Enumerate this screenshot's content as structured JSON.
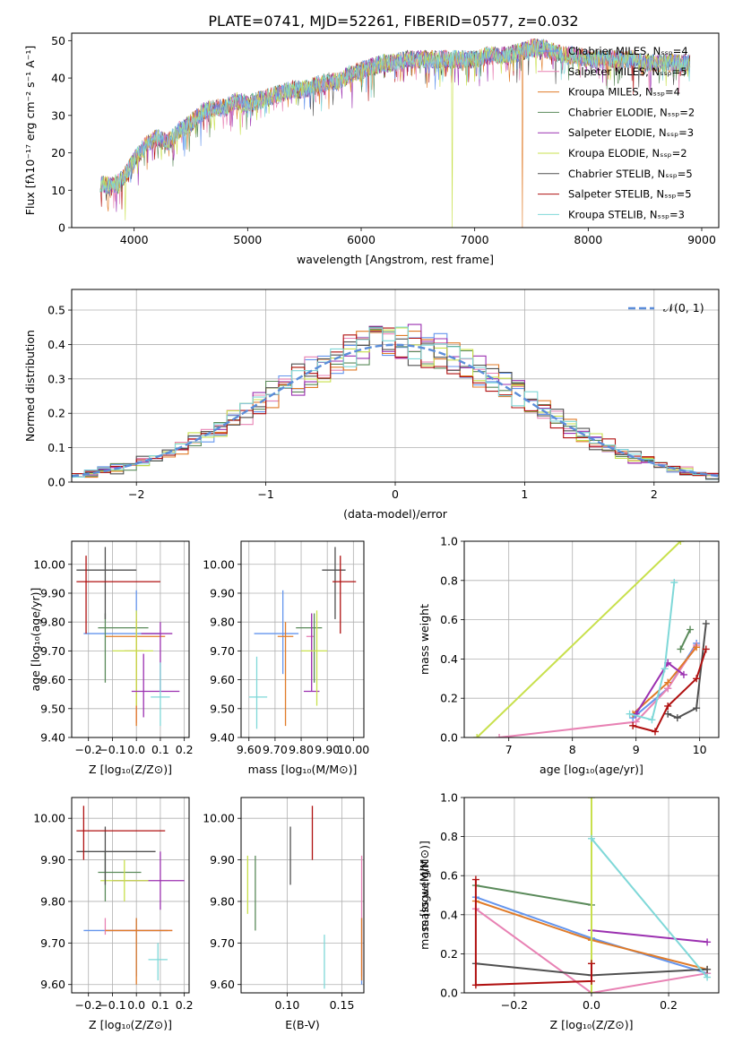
{
  "title": "PLATE=0741, MJD=52261, FIBERID=0577, z=0.032",
  "colors": [
    "#6495ed",
    "#e882b4",
    "#e07b28",
    "#5a8a5a",
    "#9b30b0",
    "#c8e04c",
    "#505050",
    "#b01010",
    "#7fd8d8"
  ],
  "chart_data": [
    {
      "type": "line",
      "name": "spectrum",
      "xlabel": "wavelength [Angstrom, rest frame]",
      "ylabel": "Flux [fλ10⁻¹⁷ erg cm⁻² s⁻¹ A⁻¹]",
      "xlim": [
        3450,
        9150
      ],
      "ylim": [
        0,
        52
      ],
      "xticks": [
        4000,
        5000,
        6000,
        7000,
        8000,
        9000
      ],
      "yticks": [
        0,
        10,
        20,
        30,
        40,
        50
      ],
      "grid": false,
      "legend_position": "top-right",
      "legend": [
        "Chabrier MILES, Nₛₛₚ=4",
        "Salpeter MILES, Nₛₛₚ=5",
        "Kroupa MILES, Nₛₛₚ=4",
        "Chabrier ELODIE, Nₛₛₚ=2",
        "Salpeter ELODIE, Nₛₛₚ=3",
        "Kroupa ELODIE, Nₛₛₚ=2",
        "Chabrier STELIB, Nₛₛₚ=5",
        "Salpeter STELIB, Nₛₛₚ=5",
        "Kroupa STELIB, Nₛₛₚ=3"
      ],
      "continuum": [
        [
          3700,
          12
        ],
        [
          3800,
          11
        ],
        [
          3900,
          13
        ],
        [
          4000,
          18
        ],
        [
          4100,
          22
        ],
        [
          4200,
          24
        ],
        [
          4300,
          23
        ],
        [
          4400,
          26
        ],
        [
          4500,
          28
        ],
        [
          4600,
          31
        ],
        [
          4700,
          32
        ],
        [
          4800,
          32
        ],
        [
          4900,
          34
        ],
        [
          5000,
          33
        ],
        [
          5100,
          34
        ],
        [
          5200,
          35
        ],
        [
          5300,
          36
        ],
        [
          5400,
          37
        ],
        [
          5500,
          37
        ],
        [
          5600,
          38
        ],
        [
          5700,
          39
        ],
        [
          5800,
          39
        ],
        [
          5900,
          41
        ],
        [
          6000,
          42
        ],
        [
          6100,
          43
        ],
        [
          6200,
          44
        ],
        [
          6300,
          44
        ],
        [
          6400,
          45
        ],
        [
          6500,
          45
        ],
        [
          6600,
          45
        ],
        [
          6700,
          45
        ],
        [
          6800,
          45
        ],
        [
          6900,
          45
        ],
        [
          7000,
          45
        ],
        [
          7100,
          46
        ],
        [
          7200,
          46
        ],
        [
          7300,
          46
        ],
        [
          7400,
          47
        ],
        [
          7500,
          48
        ],
        [
          7600,
          48
        ],
        [
          7700,
          47
        ],
        [
          7800,
          46
        ],
        [
          7900,
          46
        ],
        [
          8000,
          45
        ],
        [
          8100,
          45
        ],
        [
          8200,
          45
        ],
        [
          8300,
          45
        ],
        [
          8400,
          45
        ],
        [
          8500,
          44
        ],
        [
          8600,
          44
        ],
        [
          8700,
          44
        ],
        [
          8800,
          44
        ],
        [
          8900,
          44
        ]
      ],
      "drops": [
        {
          "series": 5,
          "x": 3920,
          "to": 2
        },
        {
          "series": 5,
          "x": 6800,
          "to": 0
        },
        {
          "series": 2,
          "x": 7420,
          "to": 0
        }
      ]
    },
    {
      "type": "step",
      "name": "residual-histogram",
      "xlabel": "(data-model)/error",
      "ylabel": "Normed distribution",
      "xlim": [
        -2.5,
        2.5
      ],
      "ylim": [
        0,
        0.56
      ],
      "xticks": [
        -2,
        -1,
        0,
        1,
        2
      ],
      "yticks": [
        0.0,
        0.1,
        0.2,
        0.3,
        0.4,
        0.5
      ],
      "grid": true,
      "legend": "𝒩(0, 1)",
      "legend_position": "top-right",
      "bin_width": 0.1
    },
    {
      "type": "errorbar",
      "name": "age-vs-Z",
      "xlabel": "Z [log₁₀(Z/Z⊙)]",
      "ylabel": "age  [log₁₀(age/yr)]",
      "xlim": [
        -0.27,
        0.22
      ],
      "ylim": [
        9.4,
        10.08
      ],
      "xticks": [
        -0.2,
        -0.1,
        0.0,
        0.1,
        0.2
      ],
      "yticks": [
        9.4,
        9.5,
        9.6,
        9.7,
        9.8,
        9.9,
        10.0
      ],
      "points": [
        {
          "c": 0,
          "x": 0.0,
          "y": 9.76,
          "xe": [
            -0.22,
            0.1
          ],
          "ye": [
            9.55,
            9.91
          ]
        },
        {
          "c": 1,
          "x": 0.0,
          "y": 9.7,
          "xe": [
            -0.05,
            0.03
          ],
          "ye": [
            9.45,
            9.83
          ]
        },
        {
          "c": 2,
          "x": 0.0,
          "y": 9.75,
          "xe": [
            -0.13,
            0.12
          ],
          "ye": [
            9.44,
            9.81
          ]
        },
        {
          "c": 3,
          "x": -0.13,
          "y": 9.78,
          "xe": [
            -0.16,
            0.05
          ],
          "ye": [
            9.59,
            9.83
          ]
        },
        {
          "c": 4,
          "x": 0.1,
          "y": 9.76,
          "xe": [
            0.02,
            0.15
          ],
          "ye": [
            9.56,
            9.8
          ]
        },
        {
          "c": 5,
          "x": 0.0,
          "y": 9.7,
          "xe": [
            -0.1,
            0.07
          ],
          "ye": [
            9.51,
            9.84
          ]
        },
        {
          "c": 6,
          "x": -0.13,
          "y": 9.98,
          "xe": [
            -0.25,
            0.0
          ],
          "ye": [
            9.81,
            10.06
          ]
        },
        {
          "c": 7,
          "x": -0.21,
          "y": 9.94,
          "xe": [
            -0.25,
            0.1
          ],
          "ye": [
            9.76,
            10.03
          ]
        },
        {
          "c": 4,
          "x": 0.03,
          "y": 9.56,
          "xe": [
            -0.02,
            0.18
          ],
          "ye": [
            9.47,
            9.69
          ]
        },
        {
          "c": 8,
          "x": 0.1,
          "y": 9.54,
          "xe": [
            0.06,
            0.14
          ],
          "ye": [
            9.44,
            9.66
          ]
        }
      ]
    },
    {
      "type": "errorbar",
      "name": "age-vs-mass",
      "xlabel": "mass [log₁₀(M/M⊙)]",
      "ylabel": "",
      "xlim": [
        9.57,
        10.04
      ],
      "ylim": [
        9.4,
        10.08
      ],
      "xticks": [
        9.6,
        9.7,
        9.8,
        9.9,
        10.0
      ],
      "yticks": [
        9.4,
        9.5,
        9.6,
        9.7,
        9.8,
        9.9,
        10.0
      ],
      "points": [
        {
          "c": 0,
          "x": 9.73,
          "y": 9.76,
          "xe": [
            9.62,
            9.79
          ],
          "ye": [
            9.62,
            9.91
          ]
        },
        {
          "c": 1,
          "x": 9.84,
          "y": 9.75,
          "xe": [
            9.82,
            9.85
          ],
          "ye": [
            9.6,
            9.83
          ]
        },
        {
          "c": 2,
          "x": 9.74,
          "y": 9.75,
          "xe": [
            9.71,
            9.77
          ],
          "ye": [
            9.44,
            9.8
          ]
        },
        {
          "c": 3,
          "x": 9.85,
          "y": 9.78,
          "xe": [
            9.78,
            9.88
          ],
          "ye": [
            9.59,
            9.83
          ]
        },
        {
          "c": 4,
          "x": 9.84,
          "y": 9.56,
          "xe": [
            9.81,
            9.87
          ],
          "ye": [
            9.56,
            9.83
          ]
        },
        {
          "c": 5,
          "x": 9.86,
          "y": 9.7,
          "xe": [
            9.8,
            9.9
          ],
          "ye": [
            9.51,
            9.84
          ]
        },
        {
          "c": 6,
          "x": 9.93,
          "y": 9.98,
          "xe": [
            9.88,
            9.97
          ],
          "ye": [
            9.81,
            10.06
          ]
        },
        {
          "c": 7,
          "x": 9.95,
          "y": 9.94,
          "xe": [
            9.92,
            10.01
          ],
          "ye": [
            9.76,
            10.03
          ]
        },
        {
          "c": 8,
          "x": 9.63,
          "y": 9.54,
          "xe": [
            9.6,
            9.67
          ],
          "ye": [
            9.43,
            9.68
          ]
        }
      ]
    },
    {
      "type": "line",
      "name": "weight-vs-age",
      "xlabel": "age  [log₁₀(age/yr)]",
      "ylabel": "mass weight",
      "xlim": [
        6.3,
        10.3
      ],
      "ylim": [
        0,
        1.0
      ],
      "xticks": [
        7,
        8,
        9,
        10
      ],
      "yticks": [
        0.0,
        0.2,
        0.4,
        0.6,
        0.8,
        1.0
      ],
      "grid": true,
      "series": [
        {
          "c": 0,
          "x": [
            8.95,
            9.5,
            9.95
          ],
          "y": [
            0.1,
            0.25,
            0.48
          ]
        },
        {
          "c": 1,
          "x": [
            6.85,
            9.0,
            9.5,
            9.95
          ],
          "y": [
            0.0,
            0.08,
            0.25,
            0.47
          ]
        },
        {
          "c": 2,
          "x": [
            8.95,
            9.5,
            9.95
          ],
          "y": [
            0.12,
            0.28,
            0.46
          ]
        },
        {
          "c": 3,
          "x": [
            9.7,
            9.85
          ],
          "y": [
            0.45,
            0.55
          ]
        },
        {
          "c": 4,
          "x": [
            9.0,
            9.5,
            9.75
          ],
          "y": [
            0.12,
            0.38,
            0.32
          ]
        },
        {
          "c": 5,
          "x": [
            6.5,
            9.7
          ],
          "y": [
            0.0,
            1.0
          ]
        },
        {
          "c": 6,
          "x": [
            9.5,
            9.65,
            9.95,
            10.1
          ],
          "y": [
            0.12,
            0.1,
            0.15,
            0.58
          ]
        },
        {
          "c": 7,
          "x": [
            8.95,
            9.3,
            9.5,
            9.95,
            10.1
          ],
          "y": [
            0.06,
            0.03,
            0.16,
            0.3,
            0.45
          ]
        },
        {
          "c": 8,
          "x": [
            8.9,
            9.25,
            9.45,
            9.6
          ],
          "y": [
            0.12,
            0.09,
            0.35,
            0.79
          ]
        }
      ]
    },
    {
      "type": "errorbar",
      "name": "mass-vs-Z",
      "xlabel": "Z [log₁₀(Z/Z⊙)]",
      "ylabel": "mass [log₁₀(M/M⊙)]",
      "xlim": [
        -0.27,
        0.22
      ],
      "ylim": [
        9.58,
        10.05
      ],
      "xticks": [
        -0.2,
        -0.1,
        0.0,
        0.1,
        0.2
      ],
      "yticks": [
        9.6,
        9.7,
        9.8,
        9.9,
        10.0
      ],
      "points": [
        {
          "c": 0,
          "x": 0.0,
          "y": 9.73,
          "xe": [
            -0.22,
            0.13
          ],
          "ye": [
            9.62,
            9.76
          ]
        },
        {
          "c": 1,
          "x": -0.13,
          "y": 9.73,
          "xe": [
            -0.13,
            0.15
          ],
          "ye": [
            9.72,
            9.76
          ]
        },
        {
          "c": 2,
          "x": 0.0,
          "y": 9.73,
          "xe": [
            -0.13,
            0.15
          ],
          "ye": [
            9.6,
            9.76
          ]
        },
        {
          "c": 3,
          "x": -0.13,
          "y": 9.87,
          "xe": [
            -0.16,
            0.02
          ],
          "ye": [
            9.8,
            9.92
          ]
        },
        {
          "c": 4,
          "x": 0.1,
          "y": 9.85,
          "xe": [
            -0.1,
            0.2
          ],
          "ye": [
            9.78,
            9.92
          ]
        },
        {
          "c": 5,
          "x": -0.05,
          "y": 9.85,
          "xe": [
            -0.15,
            0.05
          ],
          "ye": [
            9.8,
            9.9
          ]
        },
        {
          "c": 6,
          "x": -0.13,
          "y": 9.92,
          "xe": [
            -0.25,
            0.08
          ],
          "ye": [
            9.84,
            9.98
          ]
        },
        {
          "c": 7,
          "x": -0.22,
          "y": 9.97,
          "xe": [
            -0.25,
            0.12
          ],
          "ye": [
            9.9,
            10.03
          ]
        },
        {
          "c": 8,
          "x": 0.09,
          "y": 9.66,
          "xe": [
            0.05,
            0.13
          ],
          "ye": [
            9.61,
            9.7
          ]
        }
      ]
    },
    {
      "type": "errorbar",
      "name": "mass-vs-EBV",
      "xlabel": "E(B-V)",
      "ylabel": "",
      "xlim": [
        0.058,
        0.17
      ],
      "ylim": [
        9.58,
        10.05
      ],
      "xticks": [
        0.1,
        0.15
      ],
      "yticks": [
        9.6,
        9.7,
        9.8,
        9.9,
        10.0
      ],
      "points": [
        {
          "c": 0,
          "x": 0.168,
          "y": 9.73,
          "ye": [
            9.6,
            9.76
          ]
        },
        {
          "c": 1,
          "x": 0.168,
          "y": 9.8,
          "ye": [
            9.62,
            9.91
          ]
        },
        {
          "c": 2,
          "x": 0.168,
          "y": 9.7,
          "ye": [
            9.61,
            9.76
          ]
        },
        {
          "c": 3,
          "x": 0.071,
          "y": 9.85,
          "ye": [
            9.73,
            9.91
          ]
        },
        {
          "c": 5,
          "x": 0.064,
          "y": 9.85,
          "ye": [
            9.77,
            9.91
          ]
        },
        {
          "c": 6,
          "x": 0.103,
          "y": 9.92,
          "ye": [
            9.84,
            9.98
          ]
        },
        {
          "c": 7,
          "x": 0.123,
          "y": 9.97,
          "ye": [
            9.9,
            10.03
          ]
        },
        {
          "c": 8,
          "x": 0.134,
          "y": 9.66,
          "ye": [
            9.59,
            9.72
          ]
        }
      ]
    },
    {
      "type": "line",
      "name": "weight-vs-Z",
      "xlabel": "Z [log₁₀(Z/Z⊙)]",
      "ylabel": "mass weight",
      "xlim": [
        -0.33,
        0.33
      ],
      "ylim": [
        0,
        1.0
      ],
      "xticks": [
        -0.2,
        0.0,
        0.2
      ],
      "yticks": [
        0.0,
        0.2,
        0.4,
        0.6,
        0.8,
        1.0
      ],
      "grid": true,
      "series": [
        {
          "c": 0,
          "x": [
            -0.3,
            0.0,
            0.3
          ],
          "y": [
            0.49,
            0.28,
            0.1
          ]
        },
        {
          "c": 1,
          "x": [
            -0.3,
            0.0,
            0.3
          ],
          "y": [
            0.43,
            0.0,
            0.1
          ]
        },
        {
          "c": 2,
          "x": [
            -0.3,
            0.0,
            0.3
          ],
          "y": [
            0.47,
            0.27,
            0.12
          ]
        },
        {
          "c": 3,
          "x": [
            -0.3,
            0.0
          ],
          "y": [
            0.55,
            0.45
          ]
        },
        {
          "c": 4,
          "x": [
            0.0,
            0.3
          ],
          "y": [
            0.32,
            0.26
          ]
        },
        {
          "c": 5,
          "x": [
            0.0,
            0.0
          ],
          "y": [
            0.0,
            1.0
          ]
        },
        {
          "c": 6,
          "x": [
            -0.3,
            0.0,
            0.3
          ],
          "y": [
            0.15,
            0.09,
            0.12
          ]
        },
        {
          "c": 7,
          "x": [
            -0.3,
            -0.3,
            0.0,
            0.0
          ],
          "y": [
            0.58,
            0.04,
            0.06,
            0.15
          ]
        },
        {
          "c": 8,
          "x": [
            0.0,
            0.3
          ],
          "y": [
            0.79,
            0.08
          ]
        }
      ]
    }
  ]
}
